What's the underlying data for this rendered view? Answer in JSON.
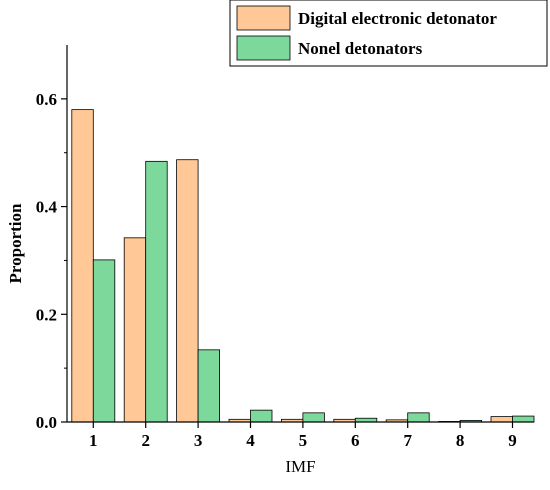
{
  "chart_data": {
    "type": "bar",
    "categories": [
      "1",
      "2",
      "3",
      "4",
      "5",
      "6",
      "7",
      "8",
      "9"
    ],
    "series": [
      {
        "name": "Digital electronic detonator",
        "color": "#FFC896",
        "values": [
          0.58,
          0.342,
          0.487,
          0.005,
          0.005,
          0.005,
          0.004,
          0.001,
          0.01
        ]
      },
      {
        "name": "Nonel detonators",
        "color": "#7DD99B",
        "values": [
          0.301,
          0.484,
          0.134,
          0.022,
          0.017,
          0.007,
          0.017,
          0.003,
          0.011
        ]
      }
    ],
    "xlabel": "IMF",
    "ylabel": "Proportion",
    "ylim": [
      0,
      0.7
    ],
    "yticks": [
      0.0,
      0.2,
      0.4,
      0.6
    ],
    "ytick_labels": [
      "0.0",
      "0.2",
      "0.4",
      "0.6"
    ],
    "grid": false,
    "legend_position": "top-right"
  }
}
